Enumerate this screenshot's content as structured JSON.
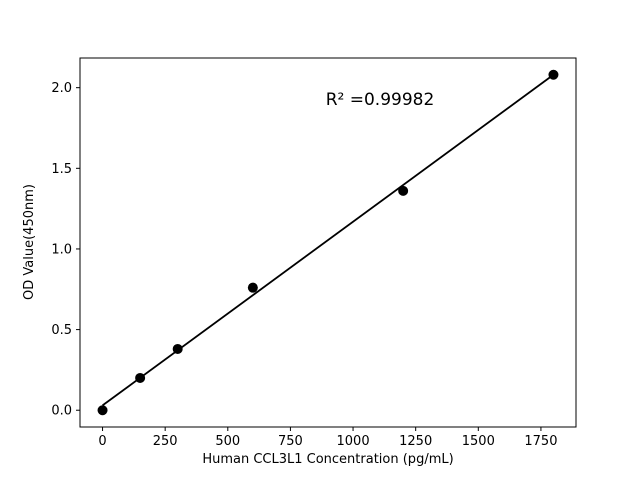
{
  "figure": {
    "background": "#ffffff"
  },
  "chart_data": {
    "type": "scatter",
    "title": "",
    "xlabel": "Human CCL3L1 Concentration (pg/mL)",
    "ylabel": "OD Value(450nm)",
    "annotation": {
      "text": "R² =0.99982"
    },
    "x": [
      0,
      150,
      300,
      600,
      1200,
      1800
    ],
    "y": [
      0.0,
      0.2,
      0.38,
      0.76,
      1.36,
      2.08
    ],
    "fit_line": {
      "x": [
        0,
        1800
      ],
      "y": [
        0.03,
        2.08
      ]
    },
    "xlim": [
      -90,
      1890
    ],
    "ylim": [
      -0.104,
      2.184
    ],
    "xticks": [
      0,
      250,
      500,
      750,
      1000,
      1250,
      1500,
      1750
    ],
    "xtick_labels": [
      "0",
      "250",
      "500",
      "750",
      "1000",
      "1250",
      "1500",
      "1750"
    ],
    "yticks": [
      0.0,
      0.5,
      1.0,
      1.5,
      2.0
    ],
    "ytick_labels": [
      "0.0",
      "0.5",
      "1.0",
      "1.5",
      "2.0"
    ],
    "grid": false,
    "legend": null,
    "marker_color": "#000000",
    "line_color": "#000000",
    "frame_color": "#000000"
  }
}
